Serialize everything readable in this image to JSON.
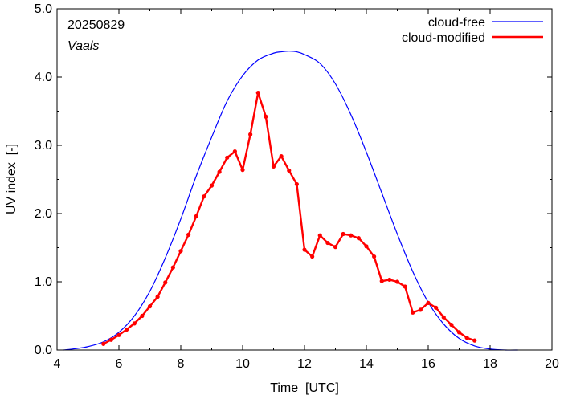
{
  "chart_data": {
    "type": "line",
    "annotations": {
      "date": "20250829",
      "location": "Vaals"
    },
    "xlabel": "Time  [UTC]",
    "ylabel": "UV index  [-]",
    "xlim": [
      4,
      20
    ],
    "ylim": [
      0,
      5
    ],
    "x_ticks": [
      "4",
      "6",
      "8",
      "10",
      "12",
      "14",
      "16",
      "18",
      "20"
    ],
    "y_ticks": [
      "0.0",
      "1.0",
      "2.0",
      "3.0",
      "4.0",
      "5.0"
    ],
    "grid": false,
    "legend_position": "top-right",
    "colors": {
      "cloud_free": "#0000ff",
      "cloud_modified": "#ff0000"
    },
    "series": [
      {
        "name": "cloud-free",
        "x": [
          4.2,
          4.6,
          5.0,
          5.5,
          6.0,
          6.5,
          7.0,
          7.5,
          8.0,
          8.5,
          9.0,
          9.5,
          10.0,
          10.5,
          11.0,
          11.25,
          11.5,
          11.75,
          12.0,
          12.5,
          13.0,
          13.5,
          14.0,
          14.5,
          15.0,
          15.5,
          16.0,
          16.5,
          17.0,
          17.5,
          18.0,
          18.5,
          18.9
        ],
        "values": [
          0.0,
          0.02,
          0.05,
          0.12,
          0.26,
          0.5,
          0.86,
          1.35,
          1.92,
          2.55,
          3.12,
          3.65,
          4.02,
          4.25,
          4.35,
          4.37,
          4.38,
          4.37,
          4.33,
          4.2,
          3.9,
          3.45,
          2.9,
          2.3,
          1.7,
          1.15,
          0.7,
          0.38,
          0.17,
          0.06,
          0.015,
          0.0,
          0.0
        ]
      },
      {
        "name": "cloud-modified",
        "x": [
          5.5,
          5.75,
          6.0,
          6.25,
          6.5,
          6.75,
          7.0,
          7.25,
          7.5,
          7.75,
          8.0,
          8.25,
          8.5,
          8.75,
          9.0,
          9.25,
          9.5,
          9.75,
          10.0,
          10.25,
          10.5,
          10.75,
          11.0,
          11.25,
          11.5,
          11.75,
          12.0,
          12.25,
          12.5,
          12.75,
          13.0,
          13.25,
          13.5,
          13.75,
          14.0,
          14.25,
          14.5,
          14.75,
          15.0,
          15.25,
          15.5,
          15.75,
          16.0,
          16.25,
          16.5,
          16.75,
          17.0,
          17.25,
          17.5
        ],
        "values": [
          0.09,
          0.15,
          0.22,
          0.3,
          0.39,
          0.5,
          0.64,
          0.78,
          0.99,
          1.21,
          1.45,
          1.69,
          1.96,
          2.25,
          2.41,
          2.61,
          2.82,
          2.91,
          2.64,
          3.16,
          3.77,
          3.42,
          2.69,
          2.84,
          2.63,
          2.43,
          1.47,
          1.37,
          1.68,
          1.57,
          1.51,
          1.7,
          1.68,
          1.64,
          1.52,
          1.37,
          1.01,
          1.03,
          1.0,
          0.93,
          0.55,
          0.59,
          0.69,
          0.62,
          0.48,
          0.37,
          0.26,
          0.18,
          0.14
        ]
      }
    ]
  }
}
